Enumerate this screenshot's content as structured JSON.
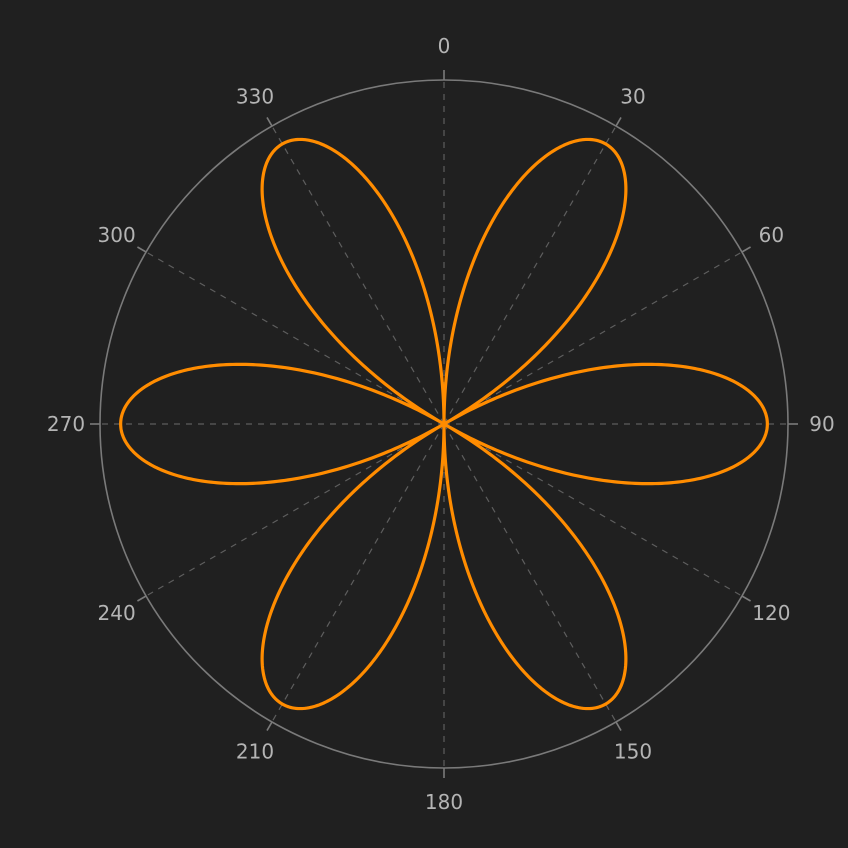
{
  "chart_data": {
    "type": "polar-line",
    "title": "",
    "theta_direction": "clockwise",
    "theta_zero": "top",
    "theta_ticks": [
      0,
      30,
      60,
      90,
      120,
      150,
      180,
      210,
      240,
      270,
      300,
      330
    ],
    "theta_tick_labels": [
      "0",
      "30",
      "60",
      "90",
      "120",
      "150",
      "180",
      "210",
      "240",
      "270",
      "300",
      "330"
    ],
    "r_range": [
      0,
      1
    ],
    "r_ticks": [],
    "grid": true,
    "grid_style": "dashed",
    "legend": "none",
    "series": [
      {
        "equation": "r = |sin(3θ)|",
        "petals": 6,
        "petal_peaks_deg": [
          30,
          90,
          150,
          210,
          270,
          330
        ],
        "r_max": 0.94,
        "color": "#ff8c00"
      }
    ]
  },
  "colors": {
    "background": "#202020",
    "frame": "#7a7a7a",
    "grid": "#5e5e5e",
    "tick_label": "#b4b4b4",
    "curve": "#ff8c00"
  }
}
